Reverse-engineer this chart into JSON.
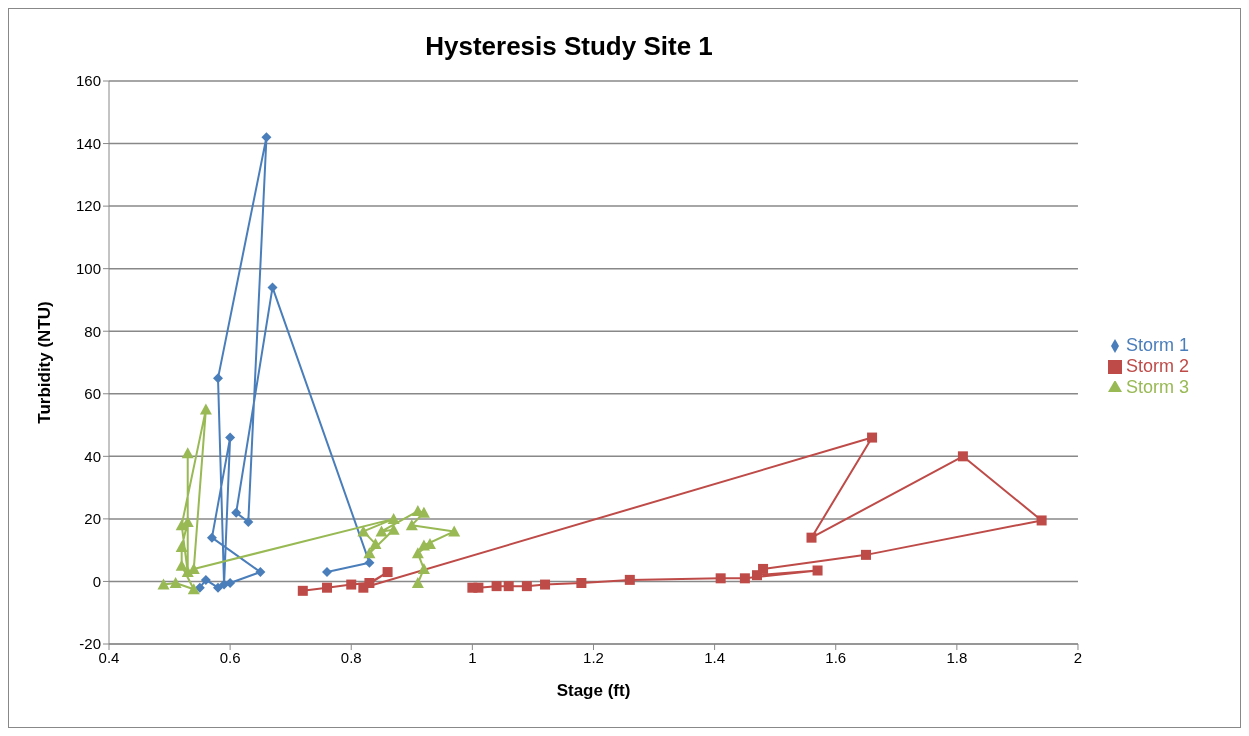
{
  "chart_data": {
    "type": "line",
    "title": "Hysteresis Study Site 1",
    "xlabel": "Stage (ft)",
    "ylabel": "Turbidity (NTU)",
    "xlim": [
      0.4,
      2
    ],
    "xticks": [
      0.4,
      0.6,
      0.8,
      1,
      1.2,
      1.4,
      1.6,
      1.8,
      2
    ],
    "ylim": [
      -20,
      160
    ],
    "yticks": [
      -20,
      0,
      20,
      40,
      60,
      80,
      100,
      120,
      140,
      160
    ],
    "grid": "y",
    "legend": "right",
    "series": [
      {
        "name": "Storm 1",
        "color": "#4a7ebb",
        "marker": "diamond",
        "x": [
          0.55,
          0.56,
          0.58,
          0.6,
          0.65,
          0.57,
          0.6,
          0.59,
          0.58,
          0.66,
          0.63,
          0.61,
          0.67,
          0.83,
          0.76
        ],
        "values": [
          -2,
          0.5,
          -2,
          -0.5,
          3,
          14,
          46,
          -1,
          65,
          142,
          19,
          22,
          94,
          6,
          3
        ]
      },
      {
        "name": "Storm 2",
        "color": "#be4b48",
        "marker": "square",
        "x": [
          0.72,
          0.76,
          0.8,
          0.83,
          0.86,
          0.82,
          1.66,
          1.56,
          1.81,
          1.94,
          1.65,
          1.48,
          1.47,
          1.57,
          1.45,
          1.41,
          1.26,
          1.18,
          1.12,
          1.09,
          1.06,
          1.04,
          1.01,
          1.0
        ],
        "values": [
          -3,
          -2,
          -1,
          -0.5,
          3,
          -2,
          46,
          14,
          40,
          19.5,
          8.5,
          4,
          2,
          3.5,
          1,
          1,
          0.5,
          -0.5,
          -1,
          -1.5,
          -1.5,
          -1.5,
          -2,
          -2
        ]
      },
      {
        "name": "Storm 3",
        "color": "#98b954",
        "marker": "triangle",
        "x": [
          0.49,
          0.51,
          0.54,
          0.52,
          0.52,
          0.53,
          0.53,
          0.53,
          0.52,
          0.56,
          0.54,
          0.87,
          0.82,
          0.84,
          0.83,
          0.87,
          0.85,
          0.91,
          0.92,
          0.9,
          0.97,
          0.92,
          0.93,
          0.91,
          0.92,
          0.91
        ],
        "values": [
          -1,
          -0.5,
          -2.5,
          5,
          11,
          19,
          41,
          3,
          18,
          55,
          4,
          20,
          16,
          12,
          9,
          16.5,
          16,
          22.5,
          22,
          18,
          16,
          11.5,
          12,
          9,
          4,
          -0.5
        ]
      }
    ]
  }
}
